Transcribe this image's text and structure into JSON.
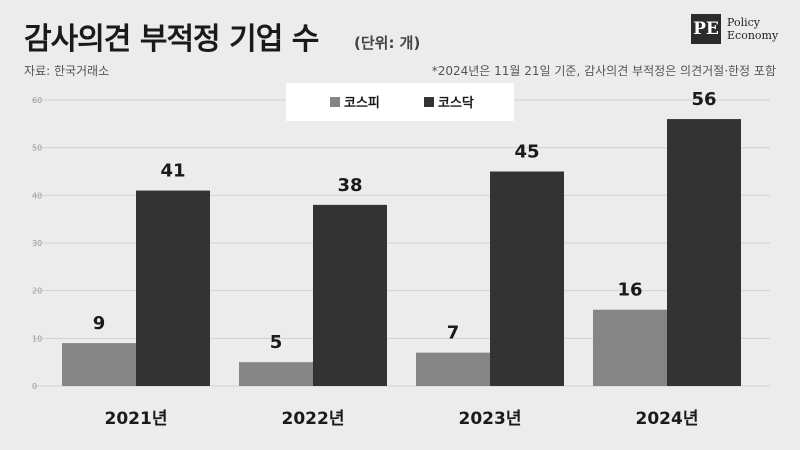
{
  "header": {
    "title": "감사의견 부적정 기업 수",
    "unit": "(단위: 개)",
    "source": "자료: 한국거래소",
    "note": "*2024년은 11월 21일 기준, 감사의견 부적정은 의견거절·한정 포함"
  },
  "logo": {
    "mark": "PE",
    "line1": "Policy",
    "line2": "Economy"
  },
  "chart_data": {
    "type": "bar",
    "title": "감사의견 부적정 기업 수",
    "xlabel": "",
    "ylabel": "",
    "categories": [
      "2021년",
      "2022년",
      "2023년",
      "2024년"
    ],
    "series": [
      {
        "name": "코스피",
        "values": [
          9,
          5,
          7,
          16
        ],
        "color": "#858585"
      },
      {
        "name": "코스닥",
        "values": [
          41,
          38,
          45,
          56
        ],
        "color": "#333333"
      }
    ],
    "ylim": [
      0,
      60
    ],
    "yticks": [
      "0",
      "10",
      "20",
      "30",
      "40",
      "50",
      "60"
    ],
    "grid": true,
    "legend": "top-center"
  }
}
